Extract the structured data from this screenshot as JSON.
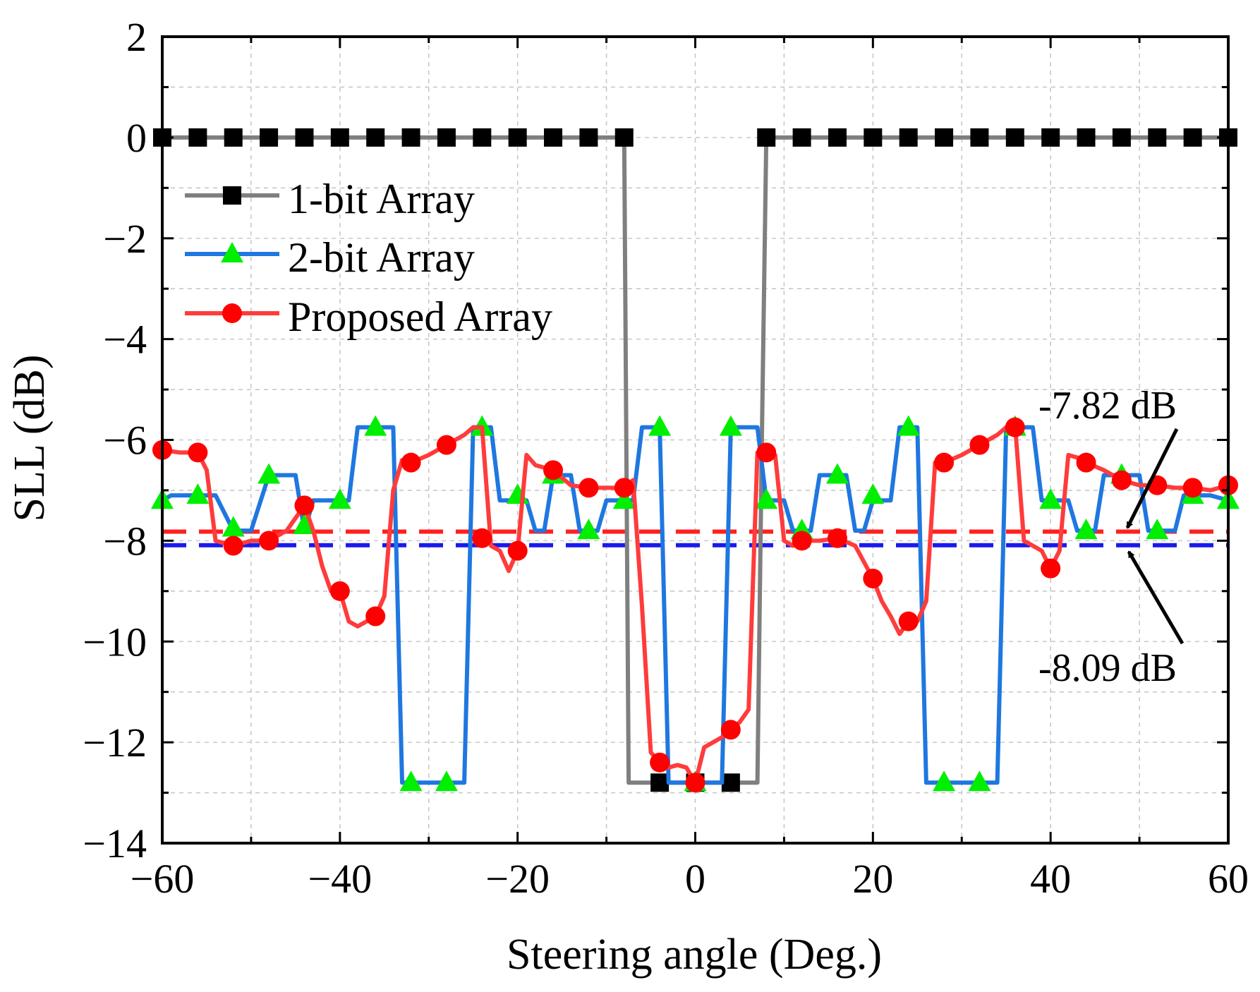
{
  "chart_data": {
    "type": "line",
    "xlabel": "Steering angle (Deg.)",
    "ylabel": "SLL (dB)",
    "xlim": [
      -60,
      60
    ],
    "ylim": [
      -14,
      2
    ],
    "xticks": [
      -60,
      -40,
      -20,
      0,
      20,
      40,
      60
    ],
    "yticks": [
      2,
      0,
      -2,
      -4,
      -6,
      -8,
      -10,
      -12,
      -14
    ],
    "xtick_labels": [
      "−60",
      "−40",
      "−20",
      "0",
      "20",
      "40",
      "60"
    ],
    "ytick_labels": [
      "2",
      "0",
      "−2",
      "−4",
      "−6",
      "−8",
      "−10",
      "−12",
      "−14"
    ],
    "grid": true,
    "legend_position": "upper-left",
    "series": [
      {
        "name": "1-bit Array",
        "line_color": "#7f7f7f",
        "marker": "square",
        "marker_color": "#000000",
        "x": [
          -60,
          -56,
          -52,
          -48,
          -44,
          -40,
          -36,
          -32,
          -28,
          -24,
          -20,
          -16,
          -12,
          -8,
          -7.5,
          -4,
          0,
          4,
          7,
          7.5,
          8,
          12,
          16,
          20,
          24,
          28,
          32,
          36,
          40,
          44,
          48,
          52,
          56,
          60
        ],
        "y": [
          0,
          0,
          0,
          0,
          0,
          0,
          0,
          0,
          0,
          0,
          0,
          0,
          0,
          0,
          -12.8,
          -12.8,
          -12.8,
          -12.8,
          -12.8,
          -6.0,
          0,
          0,
          0,
          0,
          0,
          0,
          0,
          0,
          0,
          0,
          0,
          0,
          0,
          0
        ],
        "marker_x": [
          -60,
          -56,
          -52,
          -48,
          -44,
          -40,
          -36,
          -32,
          -28,
          -24,
          -20,
          -16,
          -12,
          -8,
          -4,
          0,
          4,
          8,
          12,
          16,
          20,
          24,
          28,
          32,
          36,
          40,
          44,
          48,
          52,
          56,
          60
        ],
        "marker_y": [
          0,
          0,
          0,
          0,
          0,
          0,
          0,
          0,
          0,
          0,
          0,
          0,
          0,
          0,
          -12.8,
          -12.8,
          -12.8,
          0,
          0,
          0,
          0,
          0,
          0,
          0,
          0,
          0,
          0,
          0,
          0,
          0,
          0
        ]
      },
      {
        "name": "2-bit Array",
        "line_color": "#1f77e0",
        "marker": "triangle",
        "marker_color": "#00ee00",
        "x": [
          -60,
          -59,
          -56,
          -54,
          -52,
          -51,
          -50,
          -48,
          -46,
          -45,
          -44,
          -43,
          -42,
          -40,
          -39,
          -38,
          -36,
          -34,
          -33,
          -32,
          -28,
          -26,
          -25,
          -24,
          -23,
          -22,
          -20,
          -19,
          -18,
          -17,
          -16,
          -14,
          -13,
          -12,
          -11,
          -10,
          -8,
          -7,
          -6,
          -4,
          -3,
          -2,
          0,
          2,
          3,
          4,
          6,
          7,
          8,
          9,
          10,
          11,
          12,
          13,
          14,
          16,
          17,
          18,
          19,
          20,
          22,
          23,
          24,
          25,
          26,
          28,
          32,
          34,
          35,
          36,
          38,
          39,
          40,
          42,
          43,
          44,
          45,
          46,
          48,
          50,
          51,
          52,
          54,
          55,
          56,
          58,
          60
        ],
        "y": [
          -7.2,
          -7.1,
          -7.1,
          -7.1,
          -7.8,
          -7.8,
          -7.8,
          -6.7,
          -6.7,
          -6.7,
          -7.8,
          -7.2,
          -7.2,
          -7.2,
          -7.2,
          -5.75,
          -5.75,
          -5.75,
          -12.8,
          -12.8,
          -12.8,
          -12.8,
          -5.75,
          -5.75,
          -5.75,
          -7.2,
          -7.2,
          -7.2,
          -7.8,
          -7.8,
          -6.7,
          -6.7,
          -7.8,
          -7.8,
          -7.8,
          -7.2,
          -7.2,
          -7.2,
          -5.75,
          -5.75,
          -12.8,
          -12.8,
          -12.8,
          -12.8,
          -12.8,
          -5.75,
          -5.75,
          -5.75,
          -7.2,
          -7.2,
          -7.2,
          -7.8,
          -7.8,
          -7.8,
          -6.7,
          -6.7,
          -6.7,
          -7.8,
          -7.8,
          -7.2,
          -7.2,
          -5.75,
          -5.75,
          -5.75,
          -12.8,
          -12.8,
          -12.8,
          -12.8,
          -5.75,
          -5.75,
          -5.75,
          -7.2,
          -7.2,
          -7.2,
          -7.8,
          -7.8,
          -7.8,
          -6.7,
          -6.7,
          -6.7,
          -7.8,
          -7.8,
          -7.8,
          -7.1,
          -7.1,
          -7.1,
          -7.2
        ],
        "marker_x": [
          -60,
          -56,
          -52,
          -48,
          -44,
          -40,
          -36,
          -32,
          -28,
          -24,
          -20,
          -16,
          -12,
          -8,
          -4,
          0,
          4,
          8,
          12,
          16,
          20,
          24,
          28,
          32,
          36,
          40,
          44,
          48,
          52,
          56,
          60
        ],
        "marker_y": [
          -7.2,
          -7.1,
          -7.75,
          -6.7,
          -7.7,
          -7.2,
          -5.75,
          -12.8,
          -12.8,
          -5.75,
          -7.1,
          -6.7,
          -7.8,
          -7.2,
          -5.75,
          -12.8,
          -5.75,
          -7.2,
          -7.8,
          -6.7,
          -7.1,
          -5.75,
          -12.8,
          -12.8,
          -5.75,
          -7.2,
          -7.8,
          -6.7,
          -7.8,
          -7.1,
          -7.2
        ]
      },
      {
        "name": "Proposed Array",
        "line_color": "#ff3b3b",
        "marker": "circle",
        "marker_color": "#ff0000",
        "x": [
          -60,
          -58,
          -56,
          -55,
          -54,
          -52,
          -50,
          -48,
          -46,
          -44,
          -43,
          -42,
          -41,
          -40,
          -39,
          -38,
          -37,
          -36,
          -35,
          -34,
          -33,
          -32,
          -30,
          -28,
          -26,
          -25,
          -24,
          -23,
          -22,
          -21,
          -20,
          -19,
          -18,
          -16,
          -14,
          -12,
          -10,
          -8,
          -7,
          -6,
          -5,
          -4,
          -3,
          -2,
          -1,
          0,
          1,
          2,
          3,
          4,
          5,
          6,
          7,
          8,
          9,
          10,
          11,
          12,
          14,
          16,
          18,
          20,
          21,
          22,
          23,
          24,
          25,
          26,
          27,
          28,
          30,
          32,
          34,
          35,
          36,
          37,
          38,
          39,
          40,
          41,
          42,
          43,
          44,
          46,
          48,
          50,
          52,
          54,
          56,
          58,
          60
        ],
        "y": [
          -6.2,
          -6.25,
          -6.25,
          -6.6,
          -8.0,
          -8.1,
          -8.0,
          -8.0,
          -7.8,
          -7.3,
          -7.8,
          -8.5,
          -9.0,
          -9.0,
          -9.6,
          -9.7,
          -9.6,
          -9.5,
          -9.1,
          -7.0,
          -6.4,
          -6.45,
          -6.3,
          -6.1,
          -5.9,
          -5.75,
          -5.75,
          -8.1,
          -8.2,
          -8.6,
          -8.2,
          -6.3,
          -6.5,
          -6.6,
          -6.9,
          -6.95,
          -6.95,
          -6.95,
          -6.8,
          -9.3,
          -12.2,
          -12.4,
          -12.5,
          -12.45,
          -12.5,
          -12.8,
          -12.1,
          -12.0,
          -11.9,
          -11.75,
          -11.6,
          -11.35,
          -6.25,
          -6.25,
          -6.3,
          -8.0,
          -8.1,
          -8.0,
          -8.0,
          -7.95,
          -8.1,
          -8.75,
          -9.2,
          -9.5,
          -9.85,
          -9.6,
          -9.6,
          -9.2,
          -6.45,
          -6.45,
          -6.3,
          -6.1,
          -5.9,
          -5.75,
          -5.7,
          -8.0,
          -8.1,
          -8.2,
          -8.55,
          -8.2,
          -6.3,
          -6.35,
          -6.45,
          -6.6,
          -6.8,
          -6.9,
          -6.9,
          -6.95,
          -6.95,
          -7.0,
          -6.9
        ],
        "marker_x": [
          -60,
          -56,
          -52,
          -48,
          -44,
          -40,
          -36,
          -32,
          -28,
          -24,
          -20,
          -16,
          -12,
          -8,
          -4,
          0,
          4,
          8,
          12,
          16,
          20,
          24,
          28,
          32,
          36,
          40,
          44,
          48,
          52,
          56,
          60
        ],
        "marker_y": [
          -6.2,
          -6.25,
          -8.1,
          -8.0,
          -7.3,
          -9.0,
          -9.5,
          -6.45,
          -6.1,
          -7.95,
          -8.2,
          -6.6,
          -6.95,
          -6.95,
          -12.4,
          -12.8,
          -11.75,
          -6.25,
          -8.0,
          -7.95,
          -8.75,
          -9.6,
          -6.45,
          -6.1,
          -5.75,
          -8.55,
          -6.45,
          -6.8,
          -6.9,
          -6.95,
          -6.9
        ]
      }
    ],
    "reference_lines": [
      {
        "value": -7.82,
        "color": "#ff2020",
        "style": "dashed",
        "label": "-7.82 dB"
      },
      {
        "value": -8.09,
        "color": "#1a1aee",
        "style": "dashed",
        "label": "-8.09 dB"
      }
    ]
  }
}
